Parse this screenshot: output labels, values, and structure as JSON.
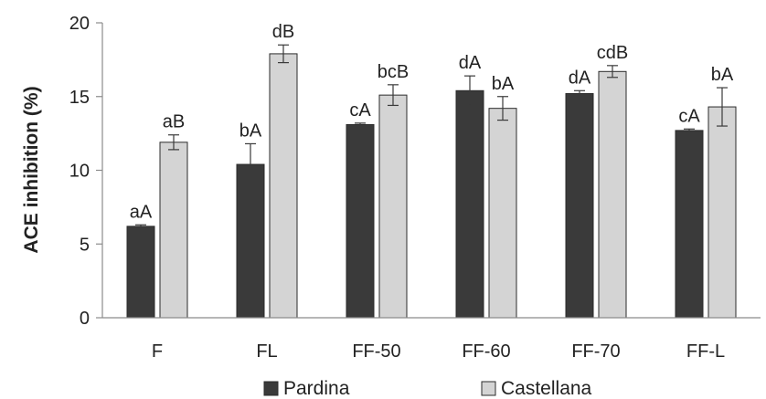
{
  "chart_data": {
    "type": "bar",
    "categories": [
      "F",
      "FL",
      "FF-50",
      "FF-60",
      "FF-70",
      "FF-L"
    ],
    "series": [
      {
        "name": "Pardina",
        "values": [
          6.2,
          10.4,
          13.1,
          15.4,
          15.2,
          12.7
        ],
        "errors": [
          0.1,
          1.4,
          0.1,
          1.0,
          0.2,
          0.1
        ],
        "labels": [
          "aA",
          "bA",
          "cA",
          "dA",
          "dA",
          "cA"
        ],
        "color": "#3a3a3a"
      },
      {
        "name": "Castellana",
        "values": [
          11.9,
          17.9,
          15.1,
          14.2,
          16.7,
          14.3
        ],
        "errors": [
          0.5,
          0.6,
          0.7,
          0.8,
          0.4,
          1.3
        ],
        "labels": [
          "aB",
          "dB",
          "bcB",
          "bA",
          "cdB",
          "bA"
        ],
        "color": "#d4d4d4"
      }
    ],
    "title": "",
    "xlabel": "",
    "ylabel": "ACE inhibition (%)",
    "ylim": [
      0,
      20
    ],
    "yticks": [
      "0",
      "5",
      "10",
      "15",
      "20"
    ],
    "grid": false,
    "legend_position": "bottom"
  }
}
